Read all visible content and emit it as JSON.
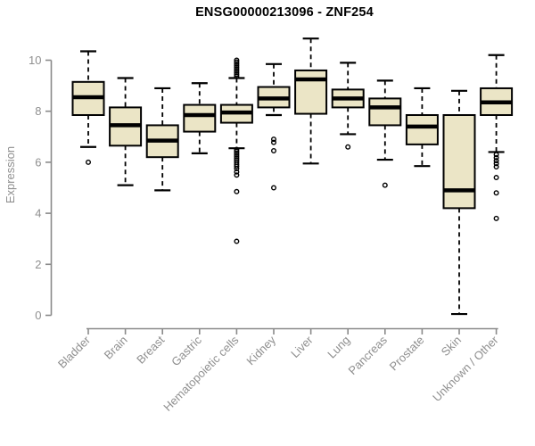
{
  "chart": {
    "title": "ENSG00000213096 - ZNF254",
    "ylabel": "Expression"
  },
  "chart_data": {
    "type": "boxplot",
    "title": "ENSG00000213096 - ZNF254",
    "xlabel": "",
    "ylabel": "Expression",
    "ylim": [
      0,
      10.9
    ],
    "yticks": [
      0,
      2,
      4,
      6,
      8,
      10
    ],
    "grid": false,
    "legend": "none",
    "categories": [
      "Bladder",
      "Brain",
      "Breast",
      "Gastric",
      "Hematopoietic cells",
      "Kidney",
      "Liver",
      "Lung",
      "Pancreas",
      "Prostate",
      "Skin",
      "Unknown / Other"
    ],
    "boxes": [
      {
        "category": "Bladder",
        "whisker_low": 6.6,
        "q1": 7.85,
        "median": 8.55,
        "q3": 9.15,
        "whisker_high": 10.35,
        "outliers": [
          6.0
        ]
      },
      {
        "category": "Brain",
        "whisker_low": 5.1,
        "q1": 6.65,
        "median": 7.45,
        "q3": 8.15,
        "whisker_high": 9.3,
        "outliers": []
      },
      {
        "category": "Breast",
        "whisker_low": 4.9,
        "q1": 6.2,
        "median": 6.85,
        "q3": 7.45,
        "whisker_high": 8.9,
        "outliers": []
      },
      {
        "category": "Gastric",
        "whisker_low": 6.35,
        "q1": 7.2,
        "median": 7.85,
        "q3": 8.25,
        "whisker_high": 9.1,
        "outliers": []
      },
      {
        "category": "Hematopoietic cells",
        "whisker_low": 6.55,
        "q1": 7.55,
        "median": 7.95,
        "q3": 8.25,
        "whisker_high": 9.3,
        "outliers": [
          10.0,
          9.93,
          9.86,
          9.79,
          9.72,
          9.65,
          9.58,
          9.51,
          9.44,
          9.37,
          6.5,
          6.43,
          6.36,
          6.29,
          6.22,
          6.15,
          6.08,
          6.0,
          5.92,
          5.84,
          5.75,
          5.62,
          5.5,
          4.85,
          2.9
        ]
      },
      {
        "category": "Kidney",
        "whisker_low": 7.85,
        "q1": 8.15,
        "median": 8.5,
        "q3": 8.95,
        "whisker_high": 9.85,
        "outliers": [
          6.9,
          6.78,
          6.45,
          5.0
        ]
      },
      {
        "category": "Liver",
        "whisker_low": 5.95,
        "q1": 7.9,
        "median": 9.25,
        "q3": 9.6,
        "whisker_high": 10.85,
        "outliers": []
      },
      {
        "category": "Lung",
        "whisker_low": 7.1,
        "q1": 8.15,
        "median": 8.5,
        "q3": 8.85,
        "whisker_high": 9.9,
        "outliers": [
          6.6
        ]
      },
      {
        "category": "Pancreas",
        "whisker_low": 6.1,
        "q1": 7.45,
        "median": 8.15,
        "q3": 8.5,
        "whisker_high": 9.2,
        "outliers": [
          5.1
        ]
      },
      {
        "category": "Prostate",
        "whisker_low": 5.85,
        "q1": 6.7,
        "median": 7.4,
        "q3": 7.85,
        "whisker_high": 8.9,
        "outliers": []
      },
      {
        "category": "Skin",
        "whisker_low": 0.05,
        "q1": 4.2,
        "median": 4.9,
        "q3": 7.85,
        "whisker_high": 8.8,
        "outliers": []
      },
      {
        "category": "Unknown / Other",
        "whisker_low": 6.4,
        "q1": 7.85,
        "median": 8.35,
        "q3": 8.9,
        "whisker_high": 10.2,
        "outliers": [
          6.3,
          6.18,
          6.06,
          5.95,
          5.82,
          5.4,
          4.8,
          3.8
        ]
      }
    ],
    "colors": {
      "box_fill": "#EBE5C6",
      "box_stroke": "#000000",
      "median": "#000000",
      "axis": "#8a8a8a",
      "tick_label": "#8f8f8f",
      "title": "#000000",
      "background": "#ffffff"
    }
  }
}
